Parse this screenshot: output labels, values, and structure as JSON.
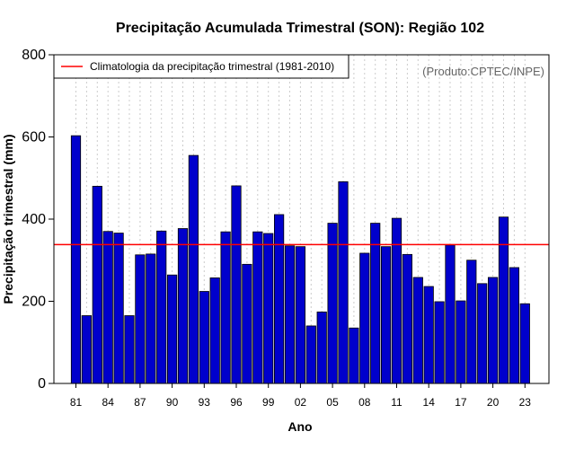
{
  "chart_data": {
    "type": "bar",
    "title": "Precipitação Acumulada Trimestral (SON): Região 102",
    "xlabel": "Ano",
    "ylabel": "Precipitação trimestral (mm)",
    "credit": "(Produto:CPTEC/INPE)",
    "ylim": [
      0,
      800
    ],
    "yticks": [
      0,
      200,
      400,
      600,
      800
    ],
    "xtick_labels": [
      "81",
      "84",
      "87",
      "90",
      "93",
      "96",
      "99",
      "02",
      "05",
      "08",
      "11",
      "14",
      "17",
      "20",
      "23"
    ],
    "years": [
      1981,
      1982,
      1983,
      1984,
      1985,
      1986,
      1987,
      1988,
      1989,
      1990,
      1991,
      1992,
      1993,
      1994,
      1995,
      1996,
      1997,
      1998,
      1999,
      2000,
      2001,
      2002,
      2003,
      2004,
      2005,
      2006,
      2007,
      2008,
      2009,
      2010,
      2011,
      2012,
      2013,
      2014,
      2015,
      2016,
      2017,
      2018,
      2019,
      2020,
      2021,
      2022,
      2023
    ],
    "values": [
      603,
      165,
      480,
      370,
      366,
      165,
      313,
      315,
      371,
      264,
      377,
      555,
      224,
      257,
      369,
      481,
      290,
      369,
      365,
      411,
      335,
      333,
      140,
      174,
      390,
      491,
      135,
      317,
      390,
      333,
      402,
      314,
      258,
      236,
      199,
      337,
      201,
      300,
      243,
      258,
      405,
      282,
      194
    ],
    "bar_color": "#0000cc",
    "climatology": {
      "label": "Climatologia da precipitação trimestral (1981-2010)",
      "value": 338,
      "color": "#ff0000"
    },
    "grid": "vertical-dotted",
    "legend_position": "top-left"
  }
}
